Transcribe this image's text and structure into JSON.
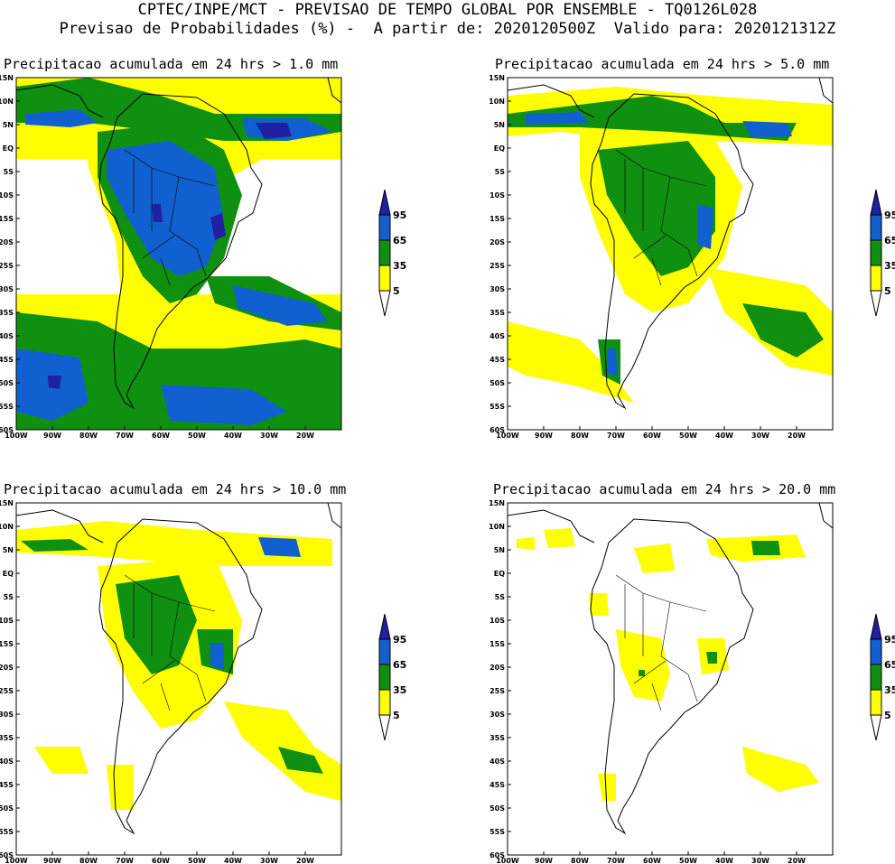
{
  "header": {
    "line1": "CPTEC/INPE/MCT - PREVISAO DE TEMPO GLOBAL POR ENSEMBLE - TQ0126L028",
    "line2": "Previsao de Probabilidades (%) -  A partir de: 2020120500Z  Valido para: 2020121312Z"
  },
  "axes": {
    "lat_labels": [
      "15N",
      "10N",
      "5N",
      "EQ",
      "5S",
      "10S",
      "15S",
      "20S",
      "25S",
      "30S",
      "35S",
      "40S",
      "45S",
      "50S",
      "55S",
      "60S"
    ],
    "lon_labels": [
      "100W",
      "90W",
      "80W",
      "70W",
      "60W",
      "50W",
      "40W",
      "30W",
      "20W"
    ]
  },
  "colorbar": {
    "labels": [
      "95",
      "65",
      "35",
      "5"
    ],
    "colors": {
      "lt5": "#ffffff",
      "5_35": "#ffff00",
      "35_65": "#109010",
      "65_95": "#1060d0",
      "gt95": "#2020a0"
    }
  },
  "panels": [
    {
      "title": "Precipitacao acumulada em 24 hrs > 1.0 mm"
    },
    {
      "title": "Precipitacao acumulada em 24 hrs > 5.0 mm"
    },
    {
      "title": "Precipitacao acumulada em 24 hrs > 10.0 mm"
    },
    {
      "title": "Precipitacao acumulada em 24 hrs > 20.0 mm"
    }
  ]
}
